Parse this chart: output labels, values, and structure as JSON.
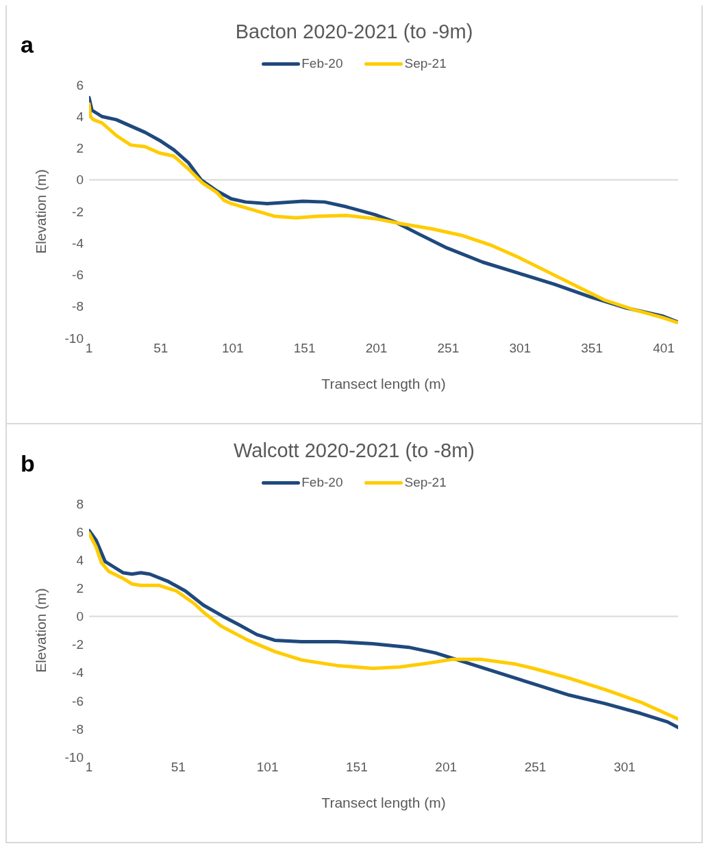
{
  "chart_data": [
    {
      "type": "line",
      "title": "Bacton 2020-2021 (to -9m)",
      "annotations": [
        "a"
      ],
      "xlabel": "Transect length (m)",
      "ylabel": "Elevation (m)",
      "xlim": [
        1,
        411
      ],
      "xticks": [
        1,
        51,
        101,
        151,
        201,
        251,
        301,
        351,
        401
      ],
      "ylim": [
        -10,
        6
      ],
      "yticks": [
        -10,
        -8,
        -6,
        -4,
        -2,
        0,
        2,
        4,
        6
      ],
      "legend": "top",
      "marker": "none",
      "ref_lines": [
        {
          "axis": "y",
          "value": 0,
          "color": "#d9d9d9"
        }
      ],
      "series": [
        {
          "name": "Feb-20",
          "color": "#1f497d",
          "x": [
            1,
            3,
            10,
            20,
            30,
            40,
            50,
            60,
            70,
            79,
            90,
            100,
            110,
            125,
            150,
            165,
            180,
            200,
            215,
            230,
            250,
            275,
            300,
            325,
            350,
            375,
            400,
            410
          ],
          "values": [
            5.2,
            4.4,
            4.0,
            3.8,
            3.4,
            3.0,
            2.5,
            1.9,
            1.1,
            0.0,
            -0.7,
            -1.2,
            -1.4,
            -1.5,
            -1.35,
            -1.4,
            -1.7,
            -2.2,
            -2.7,
            -3.4,
            -4.3,
            -5.2,
            -5.9,
            -6.6,
            -7.4,
            -8.1,
            -8.6,
            -8.95
          ]
        },
        {
          "name": "Sep-21",
          "color": "#ffcc00",
          "x": [
            1,
            2,
            4,
            10,
            20,
            30,
            40,
            50,
            60,
            70,
            80,
            90,
            95,
            100,
            115,
            130,
            145,
            160,
            180,
            200,
            220,
            240,
            260,
            280,
            300,
            320,
            340,
            360,
            380,
            400,
            410
          ],
          "values": [
            4.8,
            4.0,
            3.8,
            3.6,
            2.8,
            2.2,
            2.1,
            1.7,
            1.5,
            0.7,
            -0.2,
            -0.8,
            -1.3,
            -1.5,
            -1.9,
            -2.3,
            -2.4,
            -2.3,
            -2.25,
            -2.45,
            -2.8,
            -3.1,
            -3.5,
            -4.1,
            -4.9,
            -5.8,
            -6.7,
            -7.6,
            -8.2,
            -8.7,
            -9.0
          ]
        }
      ]
    },
    {
      "type": "line",
      "title": "Walcott 2020-2021 (to -8m)",
      "annotations": [
        "b"
      ],
      "xlabel": "Transect length (m)",
      "ylabel": "Elevation (m)",
      "xlim": [
        1,
        331
      ],
      "xticks": [
        1,
        51,
        101,
        151,
        201,
        251,
        301
      ],
      "ylim": [
        -10,
        8
      ],
      "yticks": [
        -10,
        -8,
        -6,
        -4,
        -2,
        0,
        2,
        4,
        6,
        8
      ],
      "legend": "top",
      "marker": "none",
      "ref_lines": [
        {
          "axis": "y",
          "value": 0,
          "color": "#d9d9d9"
        }
      ],
      "series": [
        {
          "name": "Feb-20",
          "color": "#1f497d",
          "x": [
            1,
            5,
            10,
            15,
            20,
            25,
            30,
            35,
            45,
            55,
            65,
            76,
            85,
            95,
            105,
            120,
            140,
            160,
            180,
            195,
            210,
            230,
            250,
            270,
            290,
            310,
            325,
            331
          ],
          "values": [
            6.1,
            5.4,
            3.9,
            3.5,
            3.1,
            3.0,
            3.1,
            3.0,
            2.5,
            1.8,
            0.8,
            0.0,
            -0.6,
            -1.3,
            -1.7,
            -1.8,
            -1.8,
            -1.95,
            -2.2,
            -2.6,
            -3.2,
            -4.0,
            -4.8,
            -5.6,
            -6.2,
            -6.9,
            -7.5,
            -7.9
          ]
        },
        {
          "name": "Sep-21",
          "color": "#ffcc00",
          "x": [
            1,
            5,
            8,
            12,
            20,
            25,
            30,
            40,
            50,
            60,
            65,
            75,
            90,
            105,
            120,
            140,
            160,
            175,
            190,
            205,
            220,
            240,
            250,
            270,
            290,
            310,
            331
          ],
          "values": [
            5.9,
            4.9,
            3.8,
            3.2,
            2.7,
            2.3,
            2.2,
            2.2,
            1.8,
            0.9,
            0.3,
            -0.7,
            -1.7,
            -2.5,
            -3.1,
            -3.5,
            -3.7,
            -3.6,
            -3.35,
            -3.05,
            -3.05,
            -3.4,
            -3.7,
            -4.4,
            -5.2,
            -6.1,
            -7.3
          ]
        }
      ]
    }
  ]
}
